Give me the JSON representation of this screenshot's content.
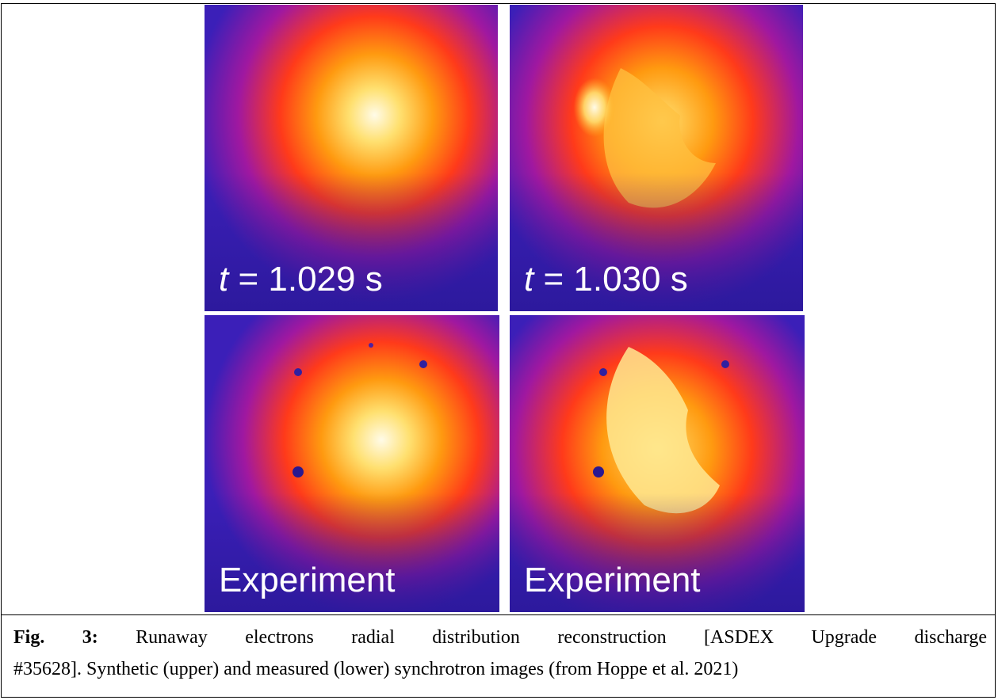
{
  "figure": {
    "panels": [
      {
        "id": "tl",
        "kind": "synthetic",
        "label_var": "t",
        "label_text": " = 1.029 s"
      },
      {
        "id": "tr",
        "kind": "synthetic",
        "label_var": "t",
        "label_text": " = 1.030 s"
      },
      {
        "id": "bl",
        "kind": "experiment",
        "label_text": "Experiment"
      },
      {
        "id": "br",
        "kind": "experiment",
        "label_text": "Experiment"
      }
    ]
  },
  "caption": {
    "prefix": "Fig. 3:",
    "line1": " Runaway electrons radial distribution reconstruction [ASDEX Upgrade discharge",
    "line2": "#35628]. Synthetic (upper) and measured (lower) synchrotron images (from Hoppe et al. 2021)"
  },
  "colors": {
    "background_purple": "#3b1fb8",
    "mid_red": "#ff3a1a",
    "orange": "#ff9a10",
    "yellow": "#ffe070",
    "white_core": "#fffbe8"
  }
}
